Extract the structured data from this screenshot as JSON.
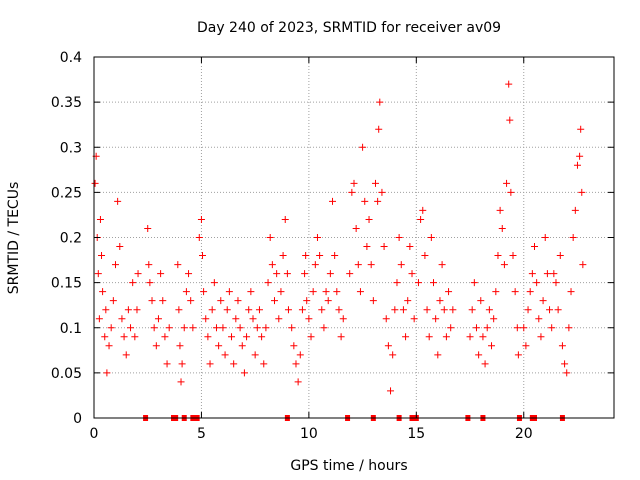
{
  "chart_data": {
    "type": "scatter",
    "title": "Day 240 of 2023, SRMTID for receiver av09",
    "xlabel": "GPS time / hours",
    "ylabel": "SRMTID / TECUs",
    "xlim": [
      0,
      24.2
    ],
    "ylim": [
      0,
      0.4
    ],
    "x_ticks": [
      0,
      5,
      10,
      15,
      20
    ],
    "x_tick_labels": [
      "0",
      "5",
      "10",
      "15",
      "20"
    ],
    "y_ticks": [
      0,
      0.05,
      0.1,
      0.15,
      0.2,
      0.25,
      0.3,
      0.35,
      0.4
    ],
    "y_tick_labels": [
      "0",
      "0.05",
      "0.1",
      "0.15",
      "0.2",
      "0.25",
      "0.3",
      "0.35",
      "0.4"
    ],
    "grid": true,
    "marker": "+",
    "colors": {
      "series": "#ff0000",
      "grid": "#a0a0a0",
      "axis": "#000000",
      "background": "#ffffff"
    },
    "series": [
      {
        "name": "SRMTID",
        "points": [
          [
            0.05,
            0.26
          ],
          [
            0.1,
            0.29
          ],
          [
            0.15,
            0.2
          ],
          [
            0.2,
            0.16
          ],
          [
            0.25,
            0.11
          ],
          [
            0.3,
            0.22
          ],
          [
            0.35,
            0.18
          ],
          [
            0.4,
            0.14
          ],
          [
            0.5,
            0.09
          ],
          [
            0.55,
            0.12
          ],
          [
            0.6,
            0.05
          ],
          [
            0.7,
            0.08
          ],
          [
            0.8,
            0.1
          ],
          [
            0.9,
            0.13
          ],
          [
            1.0,
            0.17
          ],
          [
            1.1,
            0.24
          ],
          [
            1.2,
            0.19
          ],
          [
            1.3,
            0.11
          ],
          [
            1.4,
            0.09
          ],
          [
            1.5,
            0.07
          ],
          [
            1.6,
            0.12
          ],
          [
            1.7,
            0.1
          ],
          [
            1.8,
            0.15
          ],
          [
            1.9,
            0.09
          ],
          [
            2.0,
            0.12
          ],
          [
            2.05,
            0.16
          ],
          [
            2.5,
            0.21
          ],
          [
            2.55,
            0.17
          ],
          [
            2.6,
            0.15
          ],
          [
            2.7,
            0.13
          ],
          [
            2.8,
            0.1
          ],
          [
            2.9,
            0.08
          ],
          [
            3.0,
            0.11
          ],
          [
            3.1,
            0.16
          ],
          [
            3.2,
            0.13
          ],
          [
            3.3,
            0.09
          ],
          [
            3.4,
            0.06
          ],
          [
            3.5,
            0.1
          ],
          [
            3.9,
            0.17
          ],
          [
            3.95,
            0.12
          ],
          [
            4.0,
            0.08
          ],
          [
            4.05,
            0.04
          ],
          [
            4.1,
            0.06
          ],
          [
            4.2,
            0.1
          ],
          [
            4.3,
            0.14
          ],
          [
            4.4,
            0.16
          ],
          [
            4.5,
            0.13
          ],
          [
            4.6,
            0.1
          ],
          [
            4.9,
            0.2
          ],
          [
            5.0,
            0.22
          ],
          [
            5.05,
            0.18
          ],
          [
            5.1,
            0.14
          ],
          [
            5.2,
            0.11
          ],
          [
            5.3,
            0.09
          ],
          [
            5.4,
            0.06
          ],
          [
            5.5,
            0.12
          ],
          [
            5.6,
            0.15
          ],
          [
            5.7,
            0.1
          ],
          [
            5.8,
            0.08
          ],
          [
            5.9,
            0.13
          ],
          [
            6.0,
            0.1
          ],
          [
            6.1,
            0.07
          ],
          [
            6.2,
            0.12
          ],
          [
            6.3,
            0.14
          ],
          [
            6.4,
            0.09
          ],
          [
            6.5,
            0.06
          ],
          [
            6.6,
            0.11
          ],
          [
            6.7,
            0.13
          ],
          [
            6.8,
            0.1
          ],
          [
            6.9,
            0.08
          ],
          [
            7.0,
            0.05
          ],
          [
            7.1,
            0.09
          ],
          [
            7.2,
            0.12
          ],
          [
            7.3,
            0.14
          ],
          [
            7.4,
            0.11
          ],
          [
            7.5,
            0.07
          ],
          [
            7.6,
            0.1
          ],
          [
            7.7,
            0.12
          ],
          [
            7.8,
            0.09
          ],
          [
            7.9,
            0.06
          ],
          [
            8.0,
            0.1
          ],
          [
            8.1,
            0.15
          ],
          [
            8.2,
            0.2
          ],
          [
            8.3,
            0.17
          ],
          [
            8.4,
            0.13
          ],
          [
            8.5,
            0.16
          ],
          [
            8.6,
            0.11
          ],
          [
            8.7,
            0.14
          ],
          [
            8.8,
            0.18
          ],
          [
            8.9,
            0.22
          ],
          [
            9.0,
            0.16
          ],
          [
            9.05,
            0.12
          ],
          [
            9.2,
            0.1
          ],
          [
            9.3,
            0.08
          ],
          [
            9.4,
            0.06
          ],
          [
            9.5,
            0.04
          ],
          [
            9.6,
            0.07
          ],
          [
            9.7,
            0.12
          ],
          [
            9.8,
            0.16
          ],
          [
            9.85,
            0.18
          ],
          [
            9.9,
            0.13
          ],
          [
            10.0,
            0.11
          ],
          [
            10.1,
            0.09
          ],
          [
            10.2,
            0.14
          ],
          [
            10.3,
            0.17
          ],
          [
            10.4,
            0.2
          ],
          [
            10.5,
            0.18
          ],
          [
            10.6,
            0.12
          ],
          [
            10.7,
            0.1
          ],
          [
            10.8,
            0.14
          ],
          [
            10.9,
            0.13
          ],
          [
            11.0,
            0.16
          ],
          [
            11.1,
            0.24
          ],
          [
            11.2,
            0.18
          ],
          [
            11.3,
            0.14
          ],
          [
            11.4,
            0.12
          ],
          [
            11.5,
            0.09
          ],
          [
            11.6,
            0.11
          ],
          [
            11.9,
            0.16
          ],
          [
            12.0,
            0.25
          ],
          [
            12.1,
            0.26
          ],
          [
            12.2,
            0.21
          ],
          [
            12.3,
            0.17
          ],
          [
            12.4,
            0.14
          ],
          [
            12.5,
            0.3
          ],
          [
            12.6,
            0.24
          ],
          [
            12.7,
            0.19
          ],
          [
            12.8,
            0.22
          ],
          [
            12.9,
            0.17
          ],
          [
            13.0,
            0.13
          ],
          [
            13.1,
            0.26
          ],
          [
            13.2,
            0.24
          ],
          [
            13.25,
            0.32
          ],
          [
            13.3,
            0.35
          ],
          [
            13.4,
            0.25
          ],
          [
            13.5,
            0.19
          ],
          [
            13.6,
            0.11
          ],
          [
            13.7,
            0.08
          ],
          [
            13.8,
            0.03
          ],
          [
            13.9,
            0.07
          ],
          [
            14.0,
            0.12
          ],
          [
            14.1,
            0.15
          ],
          [
            14.2,
            0.2
          ],
          [
            14.3,
            0.17
          ],
          [
            14.4,
            0.12
          ],
          [
            14.5,
            0.09
          ],
          [
            14.6,
            0.13
          ],
          [
            14.7,
            0.19
          ],
          [
            14.8,
            0.16
          ],
          [
            14.9,
            0.11
          ],
          [
            15.1,
            0.15
          ],
          [
            15.2,
            0.22
          ],
          [
            15.3,
            0.23
          ],
          [
            15.4,
            0.18
          ],
          [
            15.5,
            0.12
          ],
          [
            15.6,
            0.09
          ],
          [
            15.7,
            0.2
          ],
          [
            15.8,
            0.15
          ],
          [
            15.9,
            0.11
          ],
          [
            16.0,
            0.07
          ],
          [
            16.1,
            0.13
          ],
          [
            16.2,
            0.17
          ],
          [
            16.3,
            0.12
          ],
          [
            16.4,
            0.09
          ],
          [
            16.5,
            0.14
          ],
          [
            16.6,
            0.1
          ],
          [
            16.7,
            0.12
          ],
          [
            17.5,
            0.09
          ],
          [
            17.6,
            0.12
          ],
          [
            17.7,
            0.15
          ],
          [
            17.8,
            0.1
          ],
          [
            17.9,
            0.07
          ],
          [
            18.0,
            0.13
          ],
          [
            18.1,
            0.09
          ],
          [
            18.2,
            0.06
          ],
          [
            18.3,
            0.1
          ],
          [
            18.4,
            0.12
          ],
          [
            18.5,
            0.08
          ],
          [
            18.6,
            0.11
          ],
          [
            18.7,
            0.14
          ],
          [
            18.8,
            0.18
          ],
          [
            18.9,
            0.23
          ],
          [
            19.0,
            0.21
          ],
          [
            19.1,
            0.17
          ],
          [
            19.2,
            0.26
          ],
          [
            19.3,
            0.37
          ],
          [
            19.35,
            0.33
          ],
          [
            19.4,
            0.25
          ],
          [
            19.5,
            0.18
          ],
          [
            19.6,
            0.14
          ],
          [
            19.7,
            0.1
          ],
          [
            19.75,
            0.07
          ],
          [
            20.0,
            0.1
          ],
          [
            20.1,
            0.08
          ],
          [
            20.2,
            0.12
          ],
          [
            20.3,
            0.14
          ],
          [
            20.4,
            0.16
          ],
          [
            20.5,
            0.19
          ],
          [
            20.6,
            0.15
          ],
          [
            20.7,
            0.11
          ],
          [
            20.8,
            0.09
          ],
          [
            20.9,
            0.13
          ],
          [
            21.0,
            0.2
          ],
          [
            21.1,
            0.16
          ],
          [
            21.2,
            0.12
          ],
          [
            21.3,
            0.1
          ],
          [
            21.4,
            0.16
          ],
          [
            21.5,
            0.15
          ],
          [
            21.6,
            0.12
          ],
          [
            21.7,
            0.18
          ],
          [
            21.8,
            0.08
          ],
          [
            21.9,
            0.06
          ],
          [
            22.0,
            0.05
          ],
          [
            22.1,
            0.1
          ],
          [
            22.2,
            0.14
          ],
          [
            22.3,
            0.2
          ],
          [
            22.4,
            0.23
          ],
          [
            22.5,
            0.28
          ],
          [
            22.6,
            0.29
          ],
          [
            22.65,
            0.32
          ],
          [
            22.7,
            0.25
          ],
          [
            22.75,
            0.17
          ]
        ]
      }
    ],
    "zero_markers_x": [
      2.4,
      3.7,
      3.8,
      4.2,
      4.6,
      4.8,
      9.0,
      11.8,
      13.0,
      14.2,
      14.8,
      15.0,
      17.4,
      18.1,
      19.8,
      20.4,
      20.5,
      21.8
    ]
  }
}
